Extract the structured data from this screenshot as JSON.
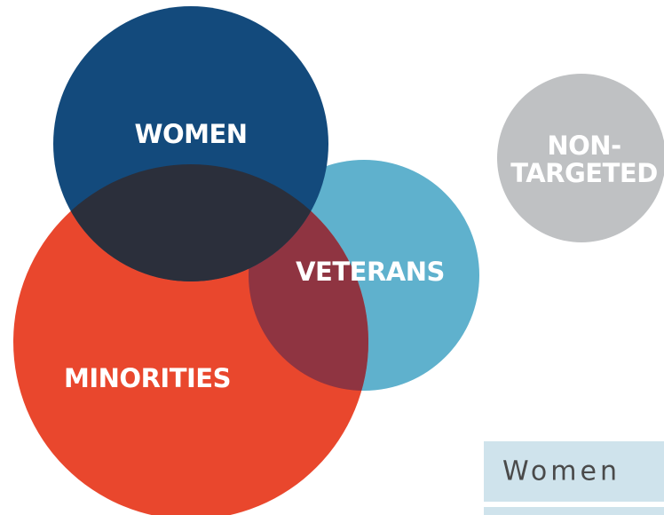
{
  "diagram": {
    "circles": [
      {
        "label": "WOMEN"
      },
      {
        "label": "VETERANS"
      },
      {
        "label": "MINORITIES"
      },
      {
        "label_lines": [
          "NON-",
          "TARGETED"
        ]
      }
    ]
  },
  "tab": {
    "label": "Women"
  }
}
